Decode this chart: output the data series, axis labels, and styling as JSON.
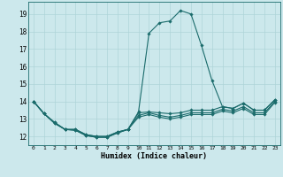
{
  "xlabel": "Humidex (Indice chaleur)",
  "xlim": [
    -0.5,
    23.5
  ],
  "ylim": [
    11.5,
    19.7
  ],
  "yticks": [
    12,
    13,
    14,
    15,
    16,
    17,
    18,
    19
  ],
  "xticks": [
    0,
    1,
    2,
    3,
    4,
    5,
    6,
    7,
    8,
    9,
    10,
    11,
    12,
    13,
    14,
    15,
    16,
    17,
    18,
    19,
    20,
    21,
    22,
    23
  ],
  "bg_color": "#cce8ec",
  "grid_color": "#aed4d8",
  "line_color": "#1a6b6b",
  "series": [
    [
      14.0,
      13.3,
      12.8,
      12.4,
      12.4,
      12.1,
      12.0,
      12.0,
      12.25,
      12.4,
      13.4,
      17.9,
      18.5,
      18.6,
      19.2,
      19.0,
      17.2,
      15.2,
      13.7,
      13.6,
      13.9,
      13.5,
      13.5,
      14.1
    ],
    [
      14.0,
      13.3,
      12.8,
      12.4,
      12.4,
      12.1,
      12.0,
      12.0,
      12.25,
      12.4,
      13.35,
      13.4,
      13.35,
      13.3,
      13.35,
      13.5,
      13.5,
      13.5,
      13.7,
      13.6,
      13.9,
      13.5,
      13.5,
      14.1
    ],
    [
      14.0,
      13.3,
      12.75,
      12.4,
      12.35,
      12.05,
      11.95,
      11.95,
      12.2,
      12.4,
      13.2,
      13.35,
      13.2,
      13.1,
      13.2,
      13.35,
      13.35,
      13.35,
      13.55,
      13.45,
      13.7,
      13.35,
      13.35,
      14.0
    ],
    [
      14.0,
      13.3,
      12.75,
      12.4,
      12.35,
      12.05,
      11.95,
      11.95,
      12.2,
      12.4,
      13.1,
      13.25,
      13.1,
      13.0,
      13.1,
      13.25,
      13.25,
      13.25,
      13.45,
      13.35,
      13.6,
      13.25,
      13.25,
      13.95
    ]
  ]
}
